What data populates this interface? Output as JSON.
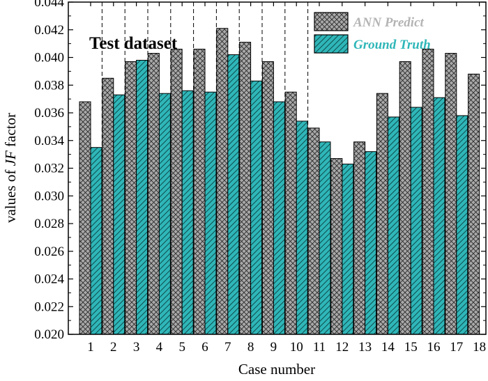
{
  "chart_data": {
    "type": "bar",
    "xlabel": "Case number",
    "ylabel_prefix": "values of ",
    "ylabel_italic": "JF",
    "ylabel_suffix": " factor",
    "annotation": "Test dataset",
    "ylim": [
      0.02,
      0.044
    ],
    "yticks": [
      "0.020",
      "0.022",
      "0.024",
      "0.026",
      "0.028",
      "0.030",
      "0.032",
      "0.034",
      "0.036",
      "0.038",
      "0.040",
      "0.042",
      "0.044"
    ],
    "categories": [
      "1",
      "2",
      "3",
      "4",
      "5",
      "6",
      "7",
      "8",
      "9",
      "10",
      "11",
      "12",
      "13",
      "14",
      "15",
      "16",
      "17",
      "18"
    ],
    "series": [
      {
        "name": "ANN Predict",
        "color": "#a9a9a9",
        "hatch": "crosshatch",
        "values": [
          0.0368,
          0.0385,
          0.0397,
          0.0403,
          0.0406,
          0.0406,
          0.0421,
          0.0411,
          0.0397,
          0.0375,
          0.0349,
          0.0327,
          0.0339,
          0.0374,
          0.0397,
          0.0406,
          0.0403,
          0.0388
        ]
      },
      {
        "name": "Ground Truth",
        "color": "#2fb6b8",
        "hatch": "diagonal",
        "values": [
          0.0335,
          0.0373,
          0.0398,
          0.0374,
          0.0376,
          0.0375,
          0.0402,
          0.0383,
          0.0368,
          0.0354,
          0.0339,
          0.0323,
          0.0332,
          0.0357,
          0.0364,
          0.0371,
          0.0358,
          null
        ]
      }
    ],
    "dashed_separators_between_cases": [
      1,
      2,
      3,
      4,
      5,
      6,
      7,
      8,
      9,
      10
    ],
    "legend_position": "top-right",
    "legend_text_colors": [
      "#b4b4b4",
      "#2fb6b8"
    ]
  }
}
